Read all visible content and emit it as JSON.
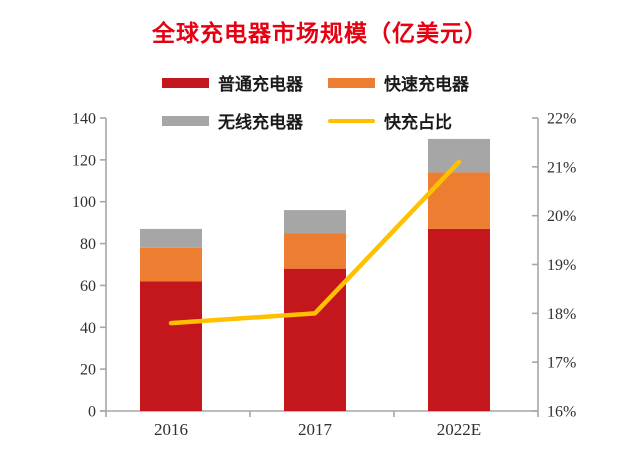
{
  "title": "全球充电器市场规模（亿美元）",
  "title_color": "#e60012",
  "legend": [
    {
      "label": "普通充电器",
      "color": "#c4161d",
      "type": "bar"
    },
    {
      "label": "快速充电器",
      "color": "#ed7d31",
      "type": "bar"
    },
    {
      "label": "无线充电器",
      "color": "#a6a6a6",
      "type": "bar"
    },
    {
      "label": "快充占比",
      "color": "#ffc000",
      "type": "line"
    }
  ],
  "chart_data": {
    "type": "bar",
    "subtype": "stacked-bar-with-line",
    "title": "全球充电器市场规模（亿美元）",
    "categories": [
      "2016",
      "2017",
      "2022E"
    ],
    "series": [
      {
        "name": "普通充电器",
        "type": "bar",
        "color": "#c4161d",
        "values": [
          62,
          68,
          87
        ]
      },
      {
        "name": "快速充电器",
        "type": "bar",
        "color": "#ed7d31",
        "values": [
          16,
          17,
          27
        ]
      },
      {
        "name": "无线充电器",
        "type": "bar",
        "color": "#a6a6a6",
        "values": [
          9,
          11,
          16
        ]
      }
    ],
    "stack_totals": [
      87,
      96,
      130
    ],
    "line_series": {
      "name": "快充占比",
      "type": "line",
      "axis": "right",
      "color": "#ffc000",
      "values_percent": [
        17.8,
        18.0,
        21.1
      ]
    },
    "left_axis": {
      "min": 0,
      "max": 140,
      "step": 20,
      "tick_labels": [
        "0",
        "20",
        "40",
        "60",
        "80",
        "100",
        "120",
        "140"
      ]
    },
    "right_axis": {
      "min": 16,
      "max": 22,
      "step": 1,
      "format": "percent",
      "tick_labels": [
        "16%",
        "17%",
        "18%",
        "19%",
        "20%",
        "21%",
        "22%"
      ]
    },
    "axis_color": "#a6a6a6",
    "grid": false,
    "legend_position": "top",
    "xlabel": "",
    "ylabel": ""
  }
}
